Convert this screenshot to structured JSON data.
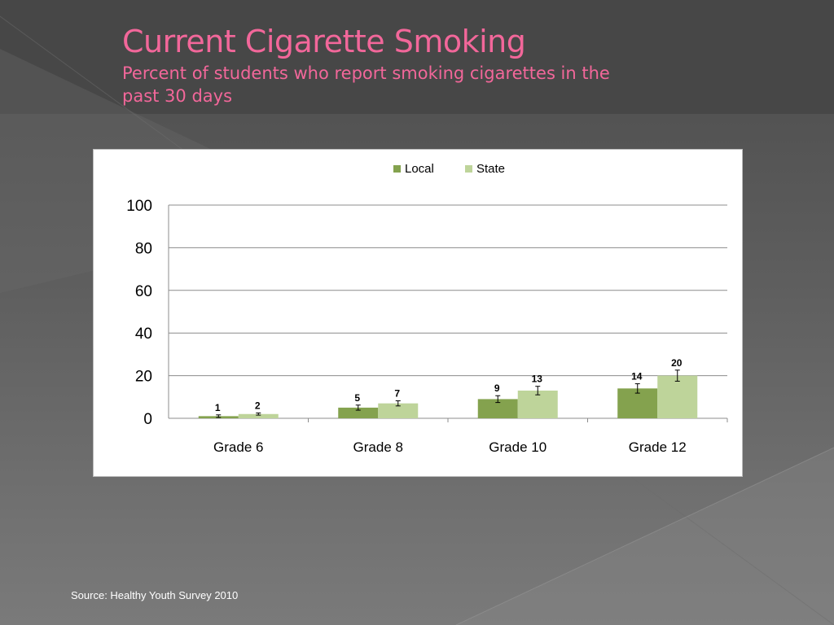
{
  "slide": {
    "title": "Current Cigarette Smoking",
    "subtitle": "Percent of students who report smoking cigarettes in the past 30 days",
    "source": "Source: Healthy Youth Survey 2010"
  },
  "colors": {
    "title": "#f2679a",
    "local": "#84a24e",
    "state": "#bed49a",
    "gridline": "#8c8c8c"
  },
  "chart_data": {
    "type": "bar",
    "categories": [
      "Grade 6",
      "Grade 8",
      "Grade 10",
      "Grade 12"
    ],
    "series": [
      {
        "name": "Local",
        "values": [
          1,
          5,
          9,
          14
        ],
        "error": [
          0.6,
          1.2,
          1.6,
          2.2
        ]
      },
      {
        "name": "State",
        "values": [
          2,
          7,
          13,
          20
        ],
        "error": [
          0.5,
          1.2,
          2.0,
          2.6
        ]
      }
    ],
    "ylim": [
      0,
      100
    ],
    "yticks": [
      0,
      20,
      40,
      60,
      80,
      100
    ],
    "grid": true,
    "legend": "top-center",
    "data_labels": true,
    "error_bars": true
  }
}
